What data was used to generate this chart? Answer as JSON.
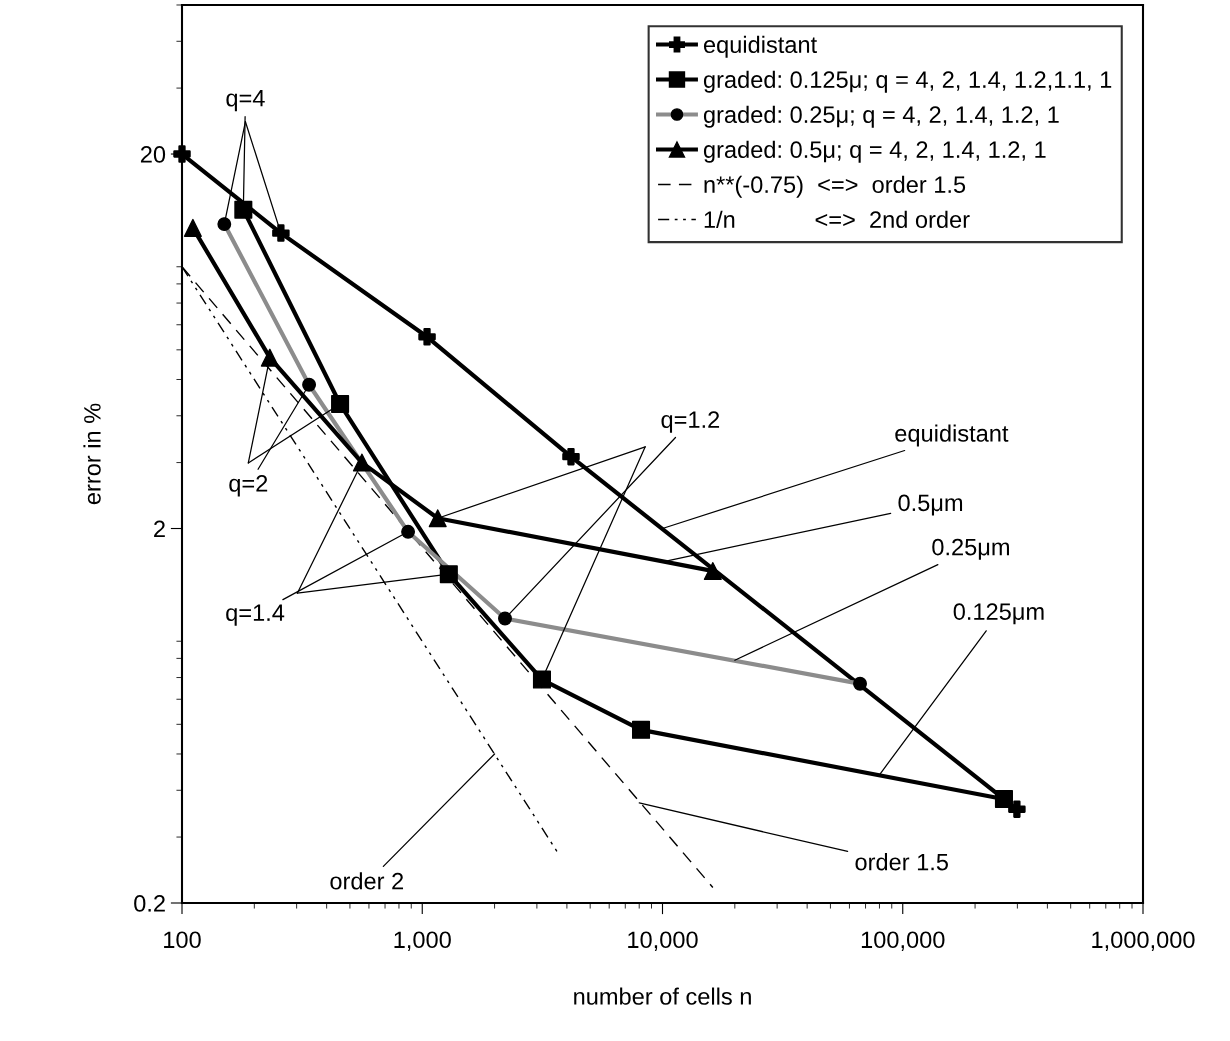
{
  "chart_data": {
    "type": "line",
    "xlabel": "number of cells n",
    "ylabel": "error in %",
    "log": "xy",
    "xlim": [
      100,
      1000000
    ],
    "ylim": [
      0.2,
      50
    ],
    "xticks": [
      100,
      {
        "value": 1000,
        "label": "1,000"
      },
      {
        "value": 10000,
        "label": "10,000"
      },
      {
        "value": 100000,
        "label": "100,000"
      },
      {
        "value": 1000000,
        "label": "1,000,000"
      }
    ],
    "yticks": [
      0.2,
      2,
      20
    ],
    "grid": false,
    "legend": "top right",
    "series": [
      {
        "name": "equidistant",
        "color": "#000000",
        "marker": "cross",
        "line_style": "solid",
        "x": [
          100,
          258,
          1047,
          4160,
          298600
        ],
        "values": [
          20,
          12.3,
          6.5,
          3.11,
          0.356
        ]
      },
      {
        "name": "graded: 0.125μ; q = 4, 2, 1.4, 1.2,1.1, 1",
        "color": "#000000",
        "marker": "square",
        "line_style": "solid",
        "x": [
          180,
          455,
          1290,
          3150,
          8140,
          263800
        ],
        "values": [
          14.2,
          4.3,
          1.51,
          0.79,
          0.58,
          0.379
        ]
      },
      {
        "name": "graded: 0.25μ; q = 4, 2, 1.4, 1.2, 1",
        "color": "#8c8c8c",
        "marker": "circle",
        "line_style": "solid",
        "x": [
          150,
          338,
          873,
          2210,
          66400
        ],
        "values": [
          13.0,
          4.84,
          1.96,
          1.15,
          0.77
        ]
      },
      {
        "name": "graded: 0.5μ; q = 4, 2, 1.4, 1.2, 1",
        "color": "#000000",
        "marker": "triangle",
        "line_style": "solid",
        "x": [
          111,
          232,
          561,
          1160,
          16200
        ],
        "values": [
          12.7,
          5.72,
          3.0,
          2.13,
          1.54
        ]
      },
      {
        "name": "n**(-0.75)  <=>  order 1.5",
        "color": "#000000",
        "marker": "none",
        "line_style": "dashed",
        "x": [
          100,
          16200
        ],
        "values": [
          10,
          0.22
        ]
      },
      {
        "name": "1/n            <=>  2nd order",
        "color": "#000000",
        "marker": "none",
        "line_style": "dashdot",
        "x": [
          100,
          3740
        ],
        "values": [
          10,
          0.267
        ]
      }
    ],
    "annotations": [
      {
        "text": "q=4",
        "x": 180,
        "y": 14.2
      },
      {
        "text": "q=2",
        "x": 338,
        "y": 4.84
      },
      {
        "text": "q=1.4",
        "x": 873,
        "y": 1.96
      },
      {
        "text": "q=1.2",
        "x": 2210,
        "y": 1.15
      },
      {
        "text": "equidistant",
        "x": 10000,
        "y": 2.0
      },
      {
        "text": "0.5μm",
        "x": 10000,
        "y": 1.63
      },
      {
        "text": "0.25μm",
        "x": 20000,
        "y": 0.89
      },
      {
        "text": "0.125μm",
        "x": 80000,
        "y": 0.44
      },
      {
        "text": "order 2",
        "x": 2000,
        "y": 0.5
      },
      {
        "text": "order 1.5",
        "x": 8000,
        "y": 0.37
      }
    ]
  }
}
